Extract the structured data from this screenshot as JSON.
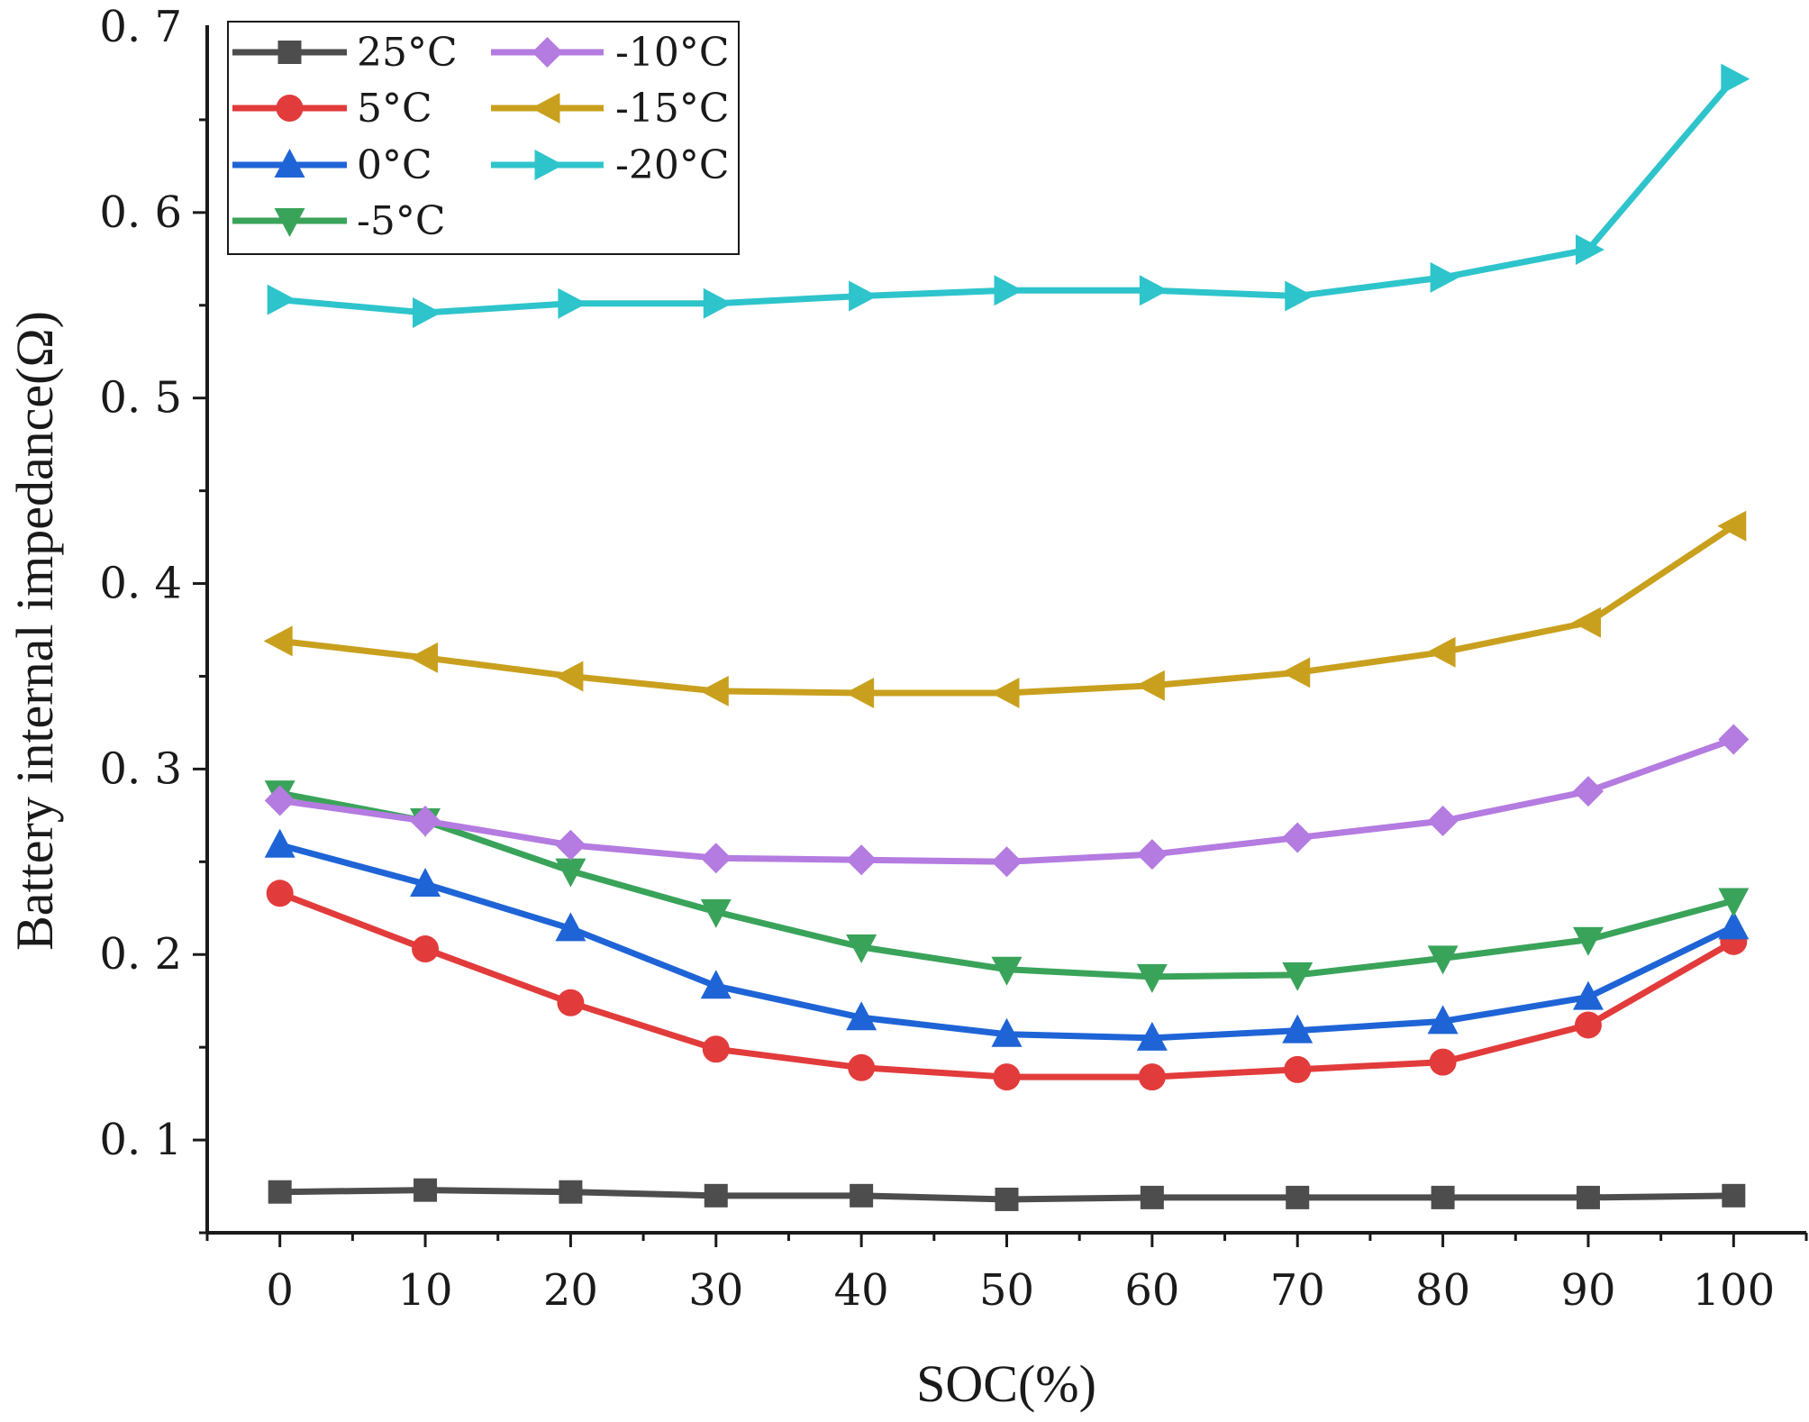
{
  "chart_data": {
    "type": "line",
    "title": "",
    "xlabel": "SOC(%)",
    "ylabel": "Battery internal impedance(Ω)",
    "x": [
      0,
      10,
      20,
      30,
      40,
      50,
      60,
      70,
      80,
      90,
      100
    ],
    "x_ticks": [
      "0",
      "10",
      "20",
      "30",
      "40",
      "50",
      "60",
      "70",
      "80",
      "90",
      "100"
    ],
    "y_ticks": [
      "0.1",
      "0.2",
      "0.3",
      "0.4",
      "0.5",
      "0.6",
      "0.7"
    ],
    "xlim": [
      -5,
      105
    ],
    "ylim": [
      0.05,
      0.7
    ],
    "grid": false,
    "legend_position": "top-left",
    "series": [
      {
        "name": "25°C",
        "color": "#4d4d4d",
        "marker": "square",
        "values": [
          0.072,
          0.073,
          0.072,
          0.07,
          0.07,
          0.068,
          0.069,
          0.069,
          0.069,
          0.069,
          0.07
        ]
      },
      {
        "name": "5°C",
        "color": "#e23b3b",
        "marker": "circle",
        "values": [
          0.233,
          0.203,
          0.174,
          0.149,
          0.139,
          0.134,
          0.134,
          0.138,
          0.142,
          0.162,
          0.207
        ]
      },
      {
        "name": "0°C",
        "color": "#1f64d6",
        "marker": "triangle-up",
        "values": [
          0.259,
          0.238,
          0.214,
          0.183,
          0.166,
          0.157,
          0.155,
          0.159,
          0.164,
          0.177,
          0.215
        ]
      },
      {
        "name": "-5°C",
        "color": "#3aa35a",
        "marker": "triangle-down",
        "values": [
          0.287,
          0.272,
          0.245,
          0.223,
          0.204,
          0.192,
          0.188,
          0.189,
          0.198,
          0.208,
          0.229
        ]
      },
      {
        "name": "-10°C",
        "color": "#b47be0",
        "marker": "diamond",
        "values": [
          0.283,
          0.272,
          0.259,
          0.252,
          0.251,
          0.25,
          0.254,
          0.263,
          0.272,
          0.288,
          0.316
        ]
      },
      {
        "name": "-15°C",
        "color": "#c9a01e",
        "marker": "triangle-left",
        "values": [
          0.369,
          0.36,
          0.35,
          0.342,
          0.341,
          0.341,
          0.345,
          0.352,
          0.363,
          0.379,
          0.431
        ]
      },
      {
        "name": "-20°C",
        "color": "#2ec4cc",
        "marker": "triangle-right",
        "values": [
          0.553,
          0.546,
          0.551,
          0.551,
          0.555,
          0.558,
          0.558,
          0.555,
          0.565,
          0.58,
          0.672
        ]
      }
    ]
  }
}
